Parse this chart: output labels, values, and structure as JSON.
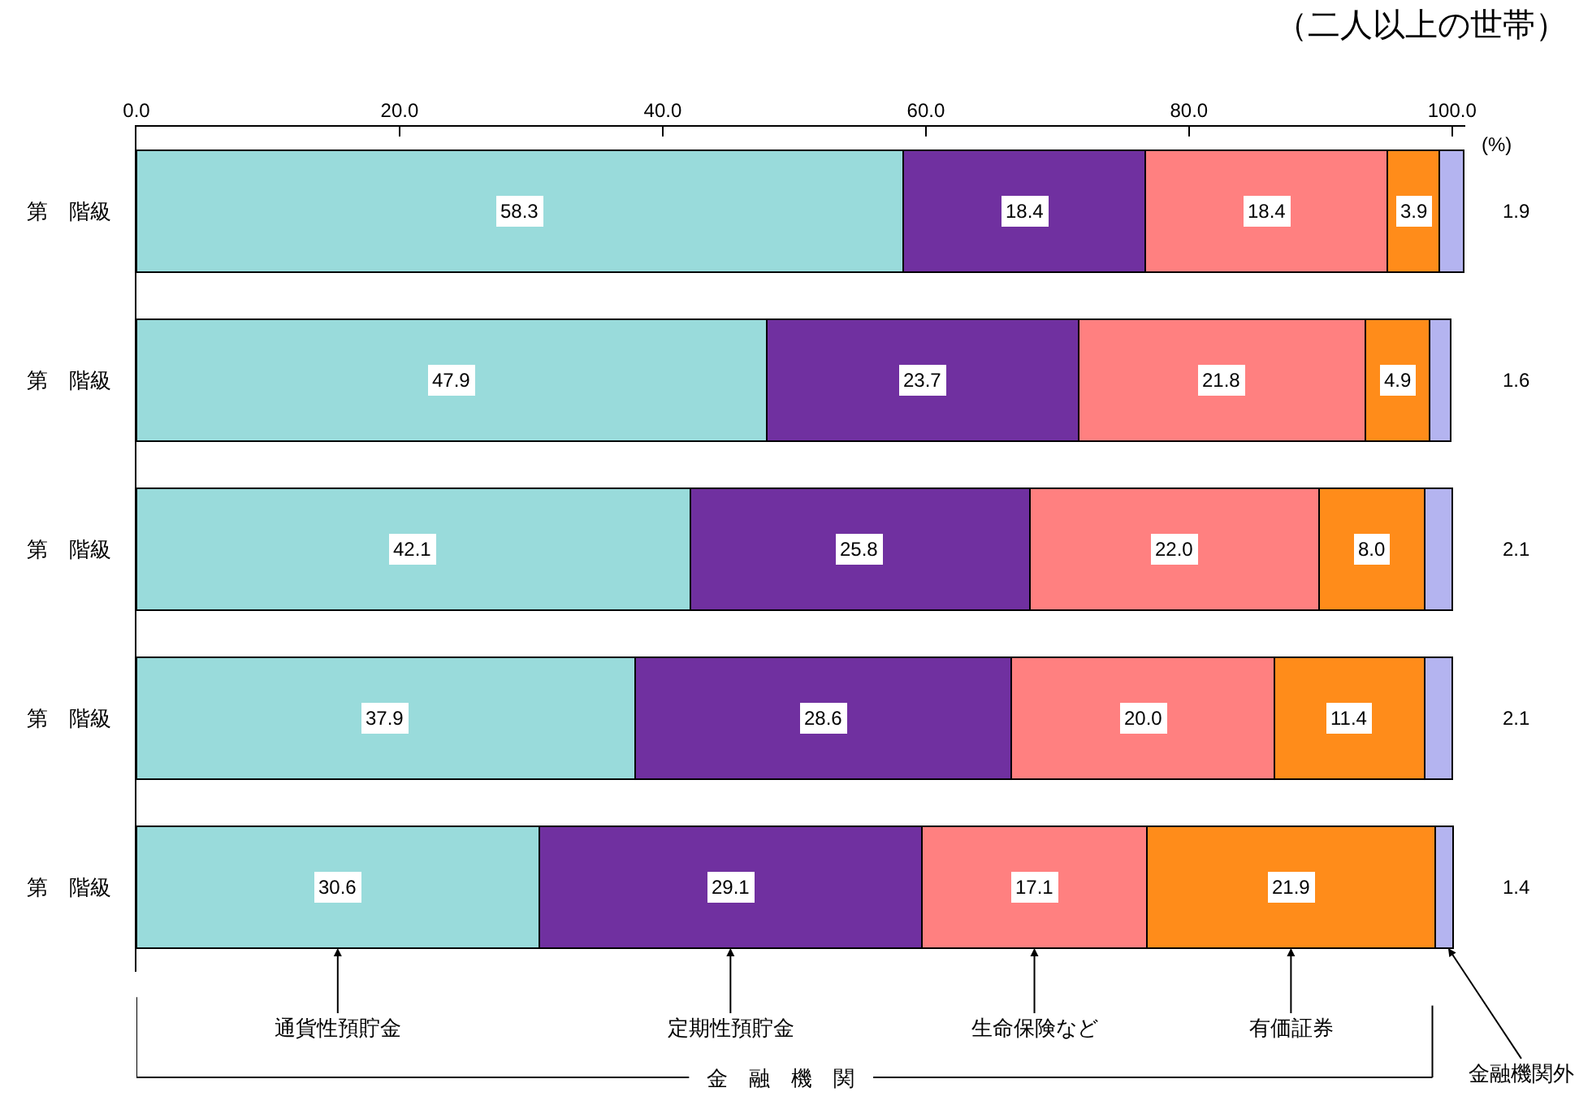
{
  "chart_data": {
    "type": "bar",
    "orientation": "horizontal",
    "stacked": true,
    "title": "（二人以上の世帯）",
    "categories": [
      "第　階級",
      "第　階級",
      "第　階級",
      "第　階級",
      "第　階級"
    ],
    "series": [
      {
        "name": "通貨性預貯金",
        "color": "#99dbdb",
        "values": [
          58.3,
          47.9,
          42.1,
          37.9,
          30.6
        ],
        "value_labels": [
          "58.3",
          "47.9",
          "42.1",
          "37.9",
          "30.6"
        ]
      },
      {
        "name": "定期性預貯金",
        "color": "#7030a0",
        "values": [
          18.4,
          23.7,
          25.8,
          28.6,
          29.1
        ],
        "value_labels": [
          "18.4",
          "23.7",
          "25.8",
          "28.6",
          "29.1"
        ]
      },
      {
        "name": "生命保険など",
        "color": "#ff8080",
        "values": [
          18.4,
          21.8,
          22.0,
          20.0,
          17.1
        ],
        "value_labels": [
          "18.4",
          "21.8",
          "22.0",
          "20.0",
          "17.1"
        ]
      },
      {
        "name": "有価証券",
        "color": "#ff8c1a",
        "values": [
          3.9,
          4.9,
          8.0,
          11.4,
          21.9
        ],
        "value_labels": [
          "3.9",
          "4.9",
          "8.0",
          "11.4",
          "21.9"
        ]
      },
      {
        "name": "金融機関外",
        "color": "#b4b4f0",
        "values": [
          1.9,
          1.6,
          2.1,
          2.1,
          1.4
        ],
        "value_labels": [
          "1.9",
          "1.6",
          "2.1",
          "2.1",
          "1.4"
        ]
      }
    ],
    "xlim": [
      0,
      101
    ],
    "xticks": [
      {
        "value": 0,
        "label": "0.0"
      },
      {
        "value": 20,
        "label": "20.0"
      },
      {
        "value": 40,
        "label": "40.0"
      },
      {
        "value": 60,
        "label": "60.0"
      },
      {
        "value": 80,
        "label": "80.0"
      },
      {
        "value": 100,
        "label": "100.0"
      }
    ],
    "xlabel": "(%)",
    "annotations": [
      "金　融　機　関"
    ],
    "grid": false,
    "legend": false
  }
}
